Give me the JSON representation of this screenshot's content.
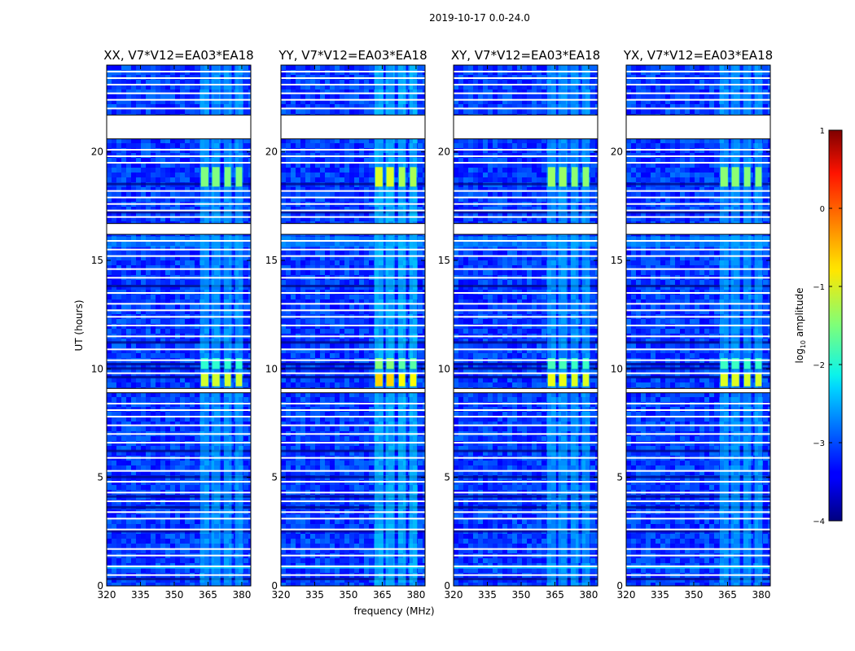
{
  "chart_data": {
    "type": "heatmap",
    "suptitle": "2019-10-17 0.0-24.0",
    "xlabel": "frequency (MHz)",
    "ylabel": "UT (hours)",
    "xlim": [
      320,
      384
    ],
    "ylim": [
      0,
      24
    ],
    "xticks": [
      320,
      335,
      350,
      365,
      380
    ],
    "yticks": [
      0,
      5,
      10,
      15,
      20
    ],
    "panels": [
      {
        "title": "XX, V7*V12=EA03*EA18",
        "pol": "XX",
        "hot_boost": 0.0
      },
      {
        "title": "YY, V7*V12=EA03*EA18",
        "pol": "YY",
        "hot_boost": 0.35
      },
      {
        "title": "XY, V7*V12=EA03*EA18",
        "pol": "XY",
        "hot_boost": 0.1
      },
      {
        "title": "YX, V7*V12=EA03*EA18",
        "pol": "YX",
        "hot_boost": 0.05
      }
    ],
    "colorbar": {
      "label": "log",
      "label_sub": "10",
      "label_tail": " amplitude",
      "range": [
        -4,
        1
      ],
      "ticks": [
        -4,
        -3,
        -2,
        -1,
        0,
        1
      ],
      "colormap": "jet"
    },
    "flagged_blocks_hours": [
      [
        20.6,
        21.7
      ],
      [
        16.2,
        16.7
      ],
      [
        8.9,
        9.1
      ]
    ],
    "flagged_lines_hours": [
      0.5,
      0.9,
      1.4,
      1.7,
      2.6,
      3.1,
      3.4,
      3.9,
      4.3,
      4.8,
      5.3,
      5.9,
      6.6,
      7.0,
      7.4,
      7.8,
      8.1,
      8.4,
      9.8,
      10.4,
      10.9,
      11.5,
      12.0,
      12.4,
      12.7,
      13.0,
      13.5,
      14.2,
      14.6,
      15.2,
      15.5,
      15.9,
      17.0,
      17.3,
      17.6,
      17.9,
      18.2,
      19.5,
      19.8,
      20.1,
      22.0,
      22.4,
      22.7,
      23.1,
      23.4,
      23.7
    ],
    "rfi_bands_mhz": [
      [
        361.5,
        365.5
      ],
      [
        366.5,
        370.5
      ],
      [
        372.0,
        375.5
      ],
      [
        377.0,
        380.5
      ]
    ],
    "rfi_hot_hours": [
      [
        9.2,
        9.8
      ],
      [
        18.4,
        19.3
      ],
      [
        10.0,
        10.5
      ]
    ]
  }
}
